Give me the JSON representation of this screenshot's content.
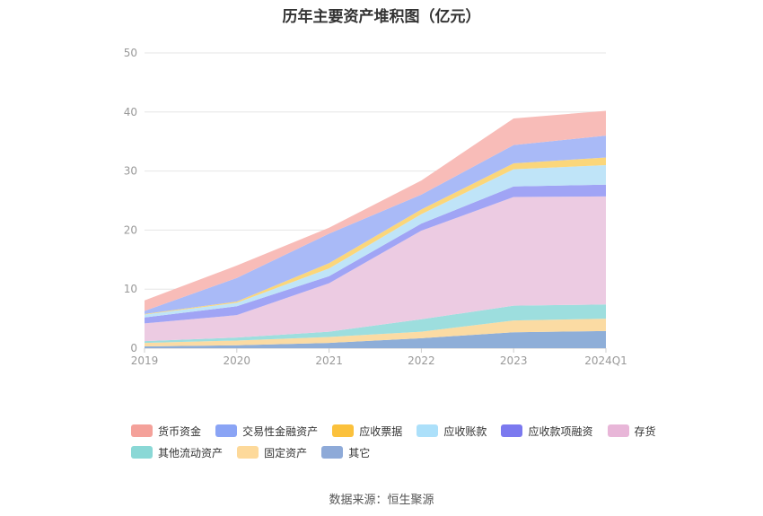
{
  "chart_data": {
    "type": "area",
    "title": "历年主要资产堆积图（亿元）",
    "stacked": true,
    "categories": [
      "2019",
      "2020",
      "2021",
      "2022",
      "2023",
      "2024Q1"
    ],
    "ylim": [
      0,
      50
    ],
    "yticks": [
      0,
      10,
      20,
      30,
      40,
      50
    ],
    "grid": true,
    "legend_position": "bottom",
    "series": [
      {
        "name": "其它",
        "color": "#8eaed8",
        "values": [
          0.3,
          0.5,
          0.9,
          1.7,
          2.7,
          2.9
        ]
      },
      {
        "name": "固定资产",
        "color": "#fbdba3",
        "values": [
          0.6,
          0.8,
          1.0,
          1.1,
          2.0,
          2.1
        ]
      },
      {
        "name": "其他流动资产",
        "color": "#9ddede",
        "values": [
          0.3,
          0.5,
          0.9,
          2.1,
          2.5,
          2.4
        ]
      },
      {
        "name": "存货",
        "color": "#eccbe2",
        "values": [
          3.0,
          3.8,
          8.2,
          15.0,
          18.4,
          18.3
        ]
      },
      {
        "name": "应收款项融资",
        "color": "#a0a4f5",
        "values": [
          1.0,
          1.5,
          1.2,
          1.2,
          1.8,
          2.0
        ]
      },
      {
        "name": "应收账款",
        "color": "#bfe4f8",
        "values": [
          0.5,
          0.6,
          1.3,
          1.6,
          2.9,
          3.3
        ]
      },
      {
        "name": "应收票据",
        "color": "#fbd67a",
        "values": [
          0.1,
          0.2,
          0.9,
          0.8,
          1.0,
          1.3
        ]
      },
      {
        "name": "交易性金融资产",
        "color": "#a9baf7",
        "values": [
          0.5,
          4.0,
          5.0,
          2.5,
          3.1,
          3.7
        ]
      },
      {
        "name": "货币资金",
        "color": "#f8bcb8",
        "values": [
          1.8,
          2.1,
          1.0,
          2.4,
          4.5,
          4.2
        ]
      }
    ]
  },
  "legend": {
    "row1": [
      {
        "label": "货币资金",
        "color": "#f4a19a"
      },
      {
        "label": "交易性金融资产",
        "color": "#8aa4f5"
      },
      {
        "label": "应收票据",
        "color": "#fbc13c"
      },
      {
        "label": "应收账款",
        "color": "#ace0fa"
      },
      {
        "label": "应收款项融资",
        "color": "#7b79ef"
      },
      {
        "label": "存货",
        "color": "#e8b6d8"
      }
    ],
    "row2": [
      {
        "label": "其他流动资产",
        "color": "#8ad8d6"
      },
      {
        "label": "固定资产",
        "color": "#fdd99a"
      },
      {
        "label": "其它",
        "color": "#8eaad8"
      }
    ]
  },
  "source": "数据来源：恒生聚源"
}
